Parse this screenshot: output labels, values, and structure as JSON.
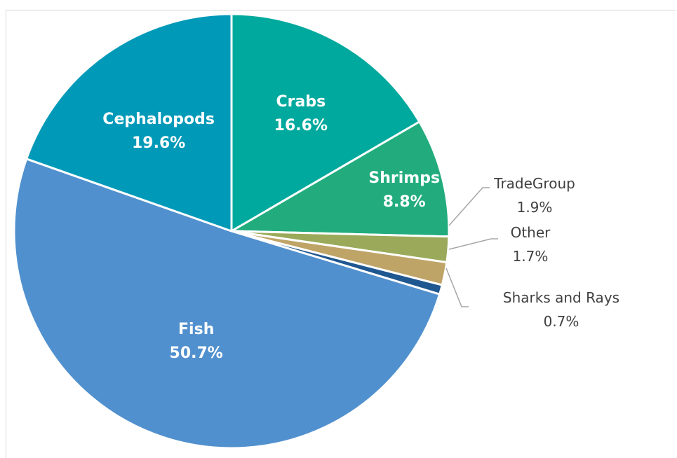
{
  "chart_data": {
    "type": "pie",
    "start_at_12_oclock": true,
    "direction": "clockwise",
    "slices": [
      {
        "label": "Crabs",
        "value": 16.6,
        "display": "16.6%",
        "color": "#00A99D",
        "label_style": "inside"
      },
      {
        "label": "Shrimps",
        "value": 8.8,
        "display": "8.8%",
        "color": "#22AC7E",
        "label_style": "inside"
      },
      {
        "label": "TradeGroup",
        "value": 1.9,
        "display": "1.9%",
        "color": "#9AAA5A",
        "label_style": "outside"
      },
      {
        "label": "Other",
        "value": 1.7,
        "display": "1.7%",
        "color": "#BFA468",
        "label_style": "outside"
      },
      {
        "label": "Sharks and Rays",
        "value": 0.7,
        "display": "0.7%",
        "color": "#1F5790",
        "label_style": "outside"
      },
      {
        "label": "Fish",
        "value": 50.7,
        "display": "50.7%",
        "color": "#5190CE",
        "label_style": "inside"
      },
      {
        "label": "Cephalopods",
        "value": 19.6,
        "display": "19.6%",
        "color": "#0099B8",
        "label_style": "inside"
      }
    ]
  }
}
